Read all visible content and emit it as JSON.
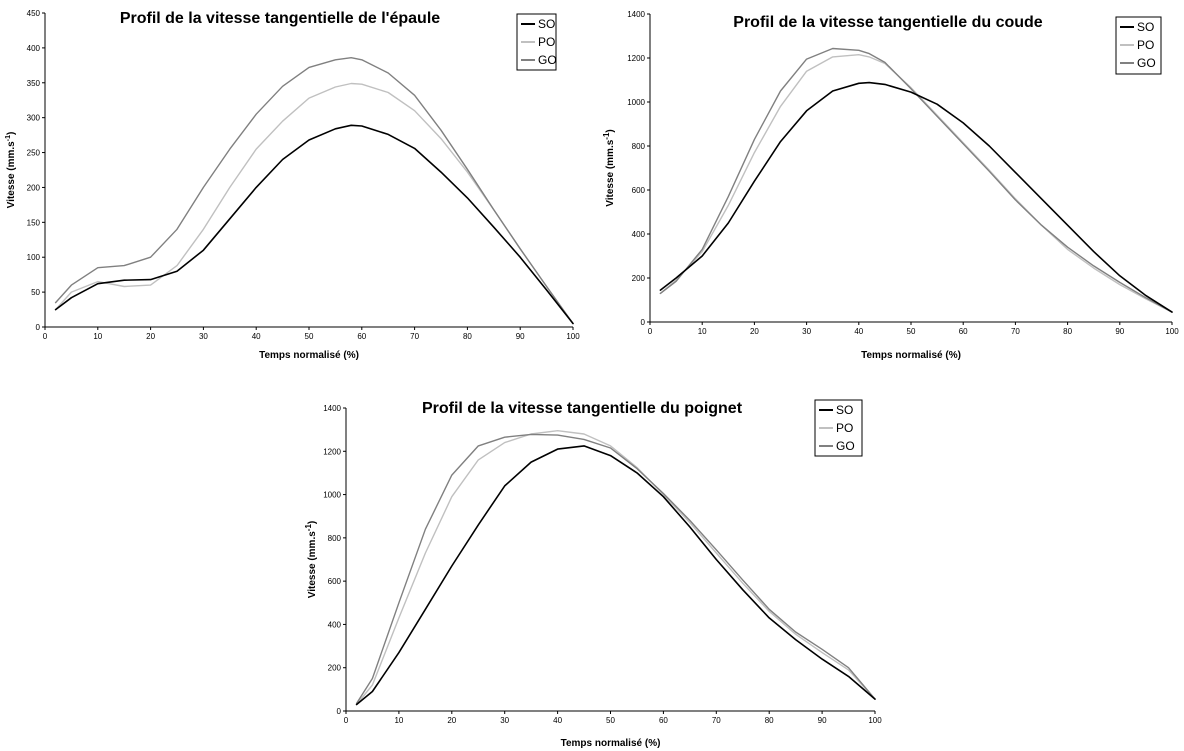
{
  "chart_data": [
    {
      "id": "epaule",
      "type": "line",
      "title": "Profil de la vitesse tangentielle de l'épaule",
      "xlabel": "Temps normalisé (%)",
      "ylabel": "Vitesse (mm.s-1)",
      "xlim": [
        0,
        100
      ],
      "ylim": [
        0,
        450
      ],
      "xticks": [
        0,
        10,
        20,
        30,
        40,
        50,
        60,
        70,
        80,
        90,
        100
      ],
      "yticks": [
        0,
        50,
        100,
        150,
        200,
        250,
        300,
        350,
        400,
        450
      ],
      "legend_position": "top-right",
      "x": [
        2,
        5,
        10,
        15,
        20,
        25,
        30,
        35,
        40,
        45,
        50,
        55,
        58,
        60,
        65,
        70,
        75,
        80,
        85,
        90,
        95,
        100
      ],
      "series": [
        {
          "name": "SO",
          "color": "#000000",
          "values": [
            25,
            42,
            62,
            67,
            68,
            80,
            110,
            155,
            200,
            240,
            268,
            284,
            289,
            288,
            276,
            256,
            222,
            185,
            143,
            100,
            53,
            5
          ]
        },
        {
          "name": "PO",
          "color": "#c0c0c0",
          "values": [
            25,
            50,
            65,
            58,
            60,
            88,
            140,
            200,
            255,
            295,
            328,
            344,
            349,
            348,
            336,
            310,
            270,
            222,
            168,
            112,
            58,
            5
          ]
        },
        {
          "name": "GO",
          "color": "#808080",
          "values": [
            35,
            60,
            85,
            88,
            100,
            140,
            200,
            255,
            305,
            345,
            372,
            383,
            386,
            383,
            364,
            332,
            282,
            226,
            168,
            112,
            58,
            5
          ]
        }
      ]
    },
    {
      "id": "coude",
      "type": "line",
      "title": "Profil de la vitesse tangentielle du coude",
      "xlabel": "Temps normalisé (%)",
      "ylabel": "Vitesse (mm.s-1)",
      "xlim": [
        0,
        100
      ],
      "ylim": [
        0,
        1400
      ],
      "xticks": [
        0,
        10,
        20,
        30,
        40,
        50,
        60,
        70,
        80,
        90,
        100
      ],
      "yticks": [
        0,
        200,
        400,
        600,
        800,
        1000,
        1200,
        1400
      ],
      "legend_position": "top-right",
      "x": [
        2,
        5,
        10,
        15,
        20,
        25,
        30,
        35,
        40,
        42,
        45,
        50,
        55,
        60,
        65,
        70,
        75,
        80,
        85,
        90,
        95,
        100
      ],
      "series": [
        {
          "name": "SO",
          "color": "#000000",
          "values": [
            145,
            200,
            300,
            450,
            640,
            820,
            960,
            1050,
            1085,
            1088,
            1080,
            1045,
            990,
            905,
            800,
            680,
            560,
            440,
            320,
            210,
            120,
            45
          ]
        },
        {
          "name": "PO",
          "color": "#c0c0c0",
          "values": [
            130,
            190,
            320,
            530,
            770,
            980,
            1140,
            1205,
            1215,
            1205,
            1175,
            1065,
            940,
            815,
            690,
            560,
            440,
            330,
            245,
            170,
            105,
            45
          ]
        },
        {
          "name": "GO",
          "color": "#808080",
          "values": [
            130,
            185,
            330,
            570,
            830,
            1050,
            1195,
            1243,
            1235,
            1220,
            1180,
            1060,
            935,
            810,
            685,
            555,
            440,
            340,
            255,
            180,
            110,
            45
          ]
        }
      ]
    },
    {
      "id": "poignet",
      "type": "line",
      "title": "Profil de la vitesse tangentielle du poignet",
      "xlabel": "Temps normalisé (%)",
      "ylabel": "Vitesse (mm.s-1)",
      "xlim": [
        0,
        100
      ],
      "ylim": [
        0,
        1400
      ],
      "xticks": [
        0,
        10,
        20,
        30,
        40,
        50,
        60,
        70,
        80,
        90,
        100
      ],
      "yticks": [
        0,
        200,
        400,
        600,
        800,
        1000,
        1200,
        1400
      ],
      "legend_position": "top-right",
      "x": [
        2,
        5,
        10,
        15,
        20,
        25,
        30,
        35,
        40,
        45,
        50,
        55,
        60,
        65,
        70,
        75,
        80,
        85,
        90,
        95,
        100
      ],
      "series": [
        {
          "name": "SO",
          "color": "#000000",
          "values": [
            30,
            90,
            270,
            470,
            670,
            860,
            1040,
            1150,
            1210,
            1225,
            1180,
            1100,
            990,
            850,
            700,
            560,
            430,
            330,
            240,
            160,
            55
          ]
        },
        {
          "name": "PO",
          "color": "#c0c0c0",
          "values": [
            30,
            120,
            430,
            730,
            990,
            1160,
            1240,
            1280,
            1295,
            1280,
            1225,
            1125,
            1000,
            870,
            730,
            590,
            460,
            355,
            270,
            190,
            55
          ]
        },
        {
          "name": "GO",
          "color": "#808080",
          "values": [
            35,
            150,
            500,
            840,
            1090,
            1225,
            1265,
            1278,
            1275,
            1255,
            1215,
            1120,
            1005,
            880,
            745,
            605,
            470,
            365,
            285,
            200,
            55
          ]
        }
      ]
    }
  ]
}
